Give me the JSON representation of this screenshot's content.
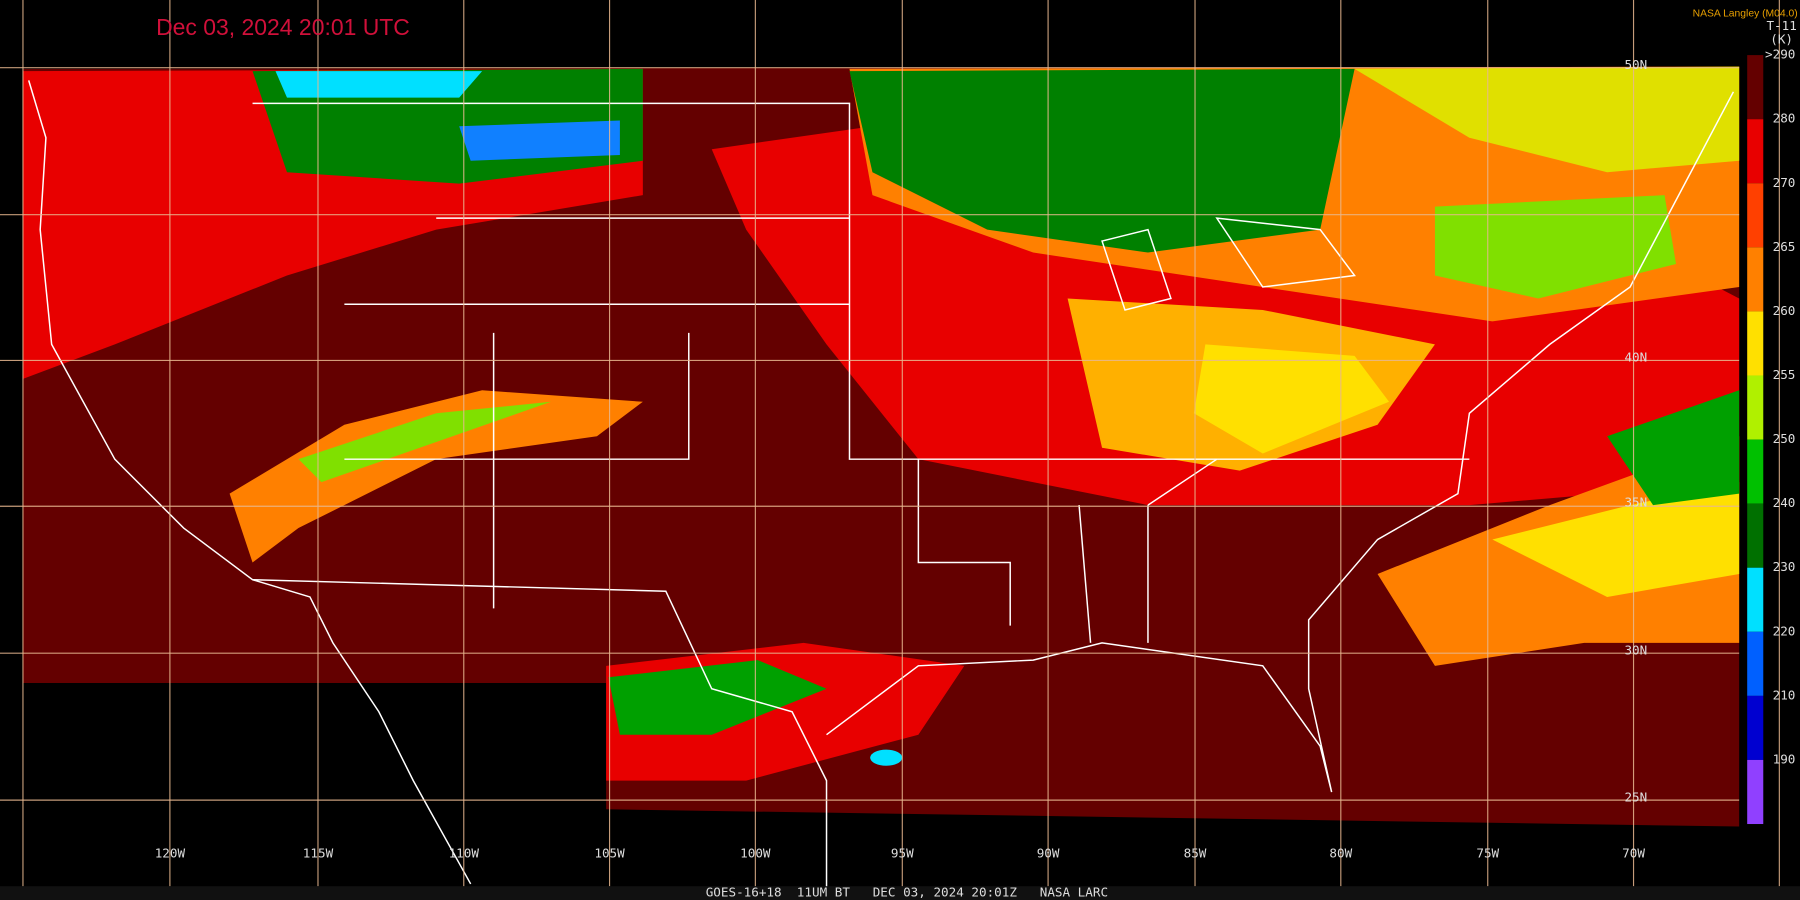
{
  "header": {
    "title": "Dec 03, 2024 20:01 UTC",
    "credit": "NASA Langley (M04.0)"
  },
  "colorbar": {
    "title": "T-11",
    "unit": "(K)",
    "labels": [
      ">290",
      280,
      270,
      265,
      260,
      255,
      250,
      240,
      230,
      220,
      210,
      190
    ]
  },
  "longitudes": [
    "120W",
    "115W",
    "110W",
    "105W",
    "100W",
    "95W",
    "90W",
    "85W",
    "80W",
    "75W",
    "70W"
  ],
  "latitudes": [
    "50N",
    "40N",
    "35N",
    "30N",
    "25N"
  ],
  "footer": "GOES-16+18  11UM BT   DEC 03, 2024 20:01Z   NASA LARC"
}
